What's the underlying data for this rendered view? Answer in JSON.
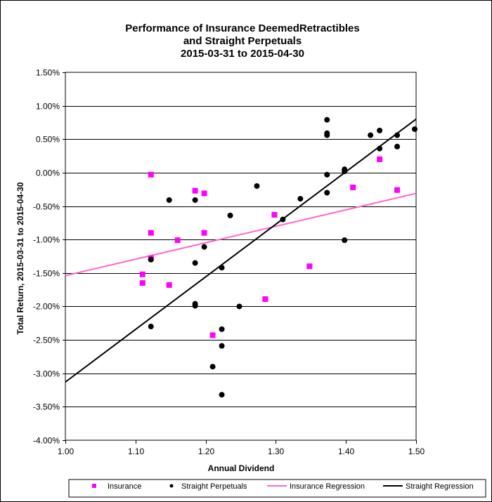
{
  "chart_data": {
    "type": "scatter",
    "title": [
      "Performance of Insurance DeemedRetractibles",
      "and Straight Perpetuals",
      "2015-03-31 to 2015-04-30"
    ],
    "xlabel": "Annual Dividend",
    "ylabel": "Total Return, 2015-03-31  to 2015-04-30",
    "xlim": [
      1.0,
      1.5
    ],
    "ylim": [
      -4.0,
      1.5
    ],
    "x_ticks": [
      1.0,
      1.1,
      1.2,
      1.3,
      1.4,
      1.5
    ],
    "x_tick_labels": [
      "1.00",
      "1.10",
      "1.20",
      "1.30",
      "1.40",
      "1.50"
    ],
    "y_ticks": [
      1.5,
      1.0,
      0.5,
      0.0,
      -0.5,
      -1.0,
      -1.5,
      -2.0,
      -2.5,
      -3.0,
      -3.5,
      -4.0
    ],
    "y_tick_labels": [
      "1.50%",
      "1.00%",
      "0.50%",
      "0.00%",
      "-0.50%",
      "-1.00%",
      "-1.50%",
      "-2.00%",
      "-2.50%",
      "-3.00%",
      "-3.50%",
      "-4.00%"
    ],
    "grid": "horizontal",
    "legend_position": "bottom",
    "series": [
      {
        "name": "Insurance",
        "kind": "scatter",
        "marker": "square",
        "color": "#ff00ff",
        "points": [
          [
            1.11,
            -1.52
          ],
          [
            1.11,
            -1.65
          ],
          [
            1.122,
            -0.03
          ],
          [
            1.122,
            -0.9
          ],
          [
            1.122,
            -1.28
          ],
          [
            1.148,
            -1.68
          ],
          [
            1.16,
            -1.01
          ],
          [
            1.185,
            -0.27
          ],
          [
            1.198,
            -0.31
          ],
          [
            1.198,
            -0.9
          ],
          [
            1.21,
            -2.43
          ],
          [
            1.285,
            -1.89
          ],
          [
            1.298,
            -0.63
          ],
          [
            1.348,
            -1.4
          ],
          [
            1.41,
            -0.22
          ],
          [
            1.448,
            0.2
          ],
          [
            1.473,
            -0.26
          ]
        ]
      },
      {
        "name": "Straight Perpetuals",
        "kind": "scatter",
        "marker": "circle",
        "color": "#000000",
        "points": [
          [
            1.122,
            -1.3
          ],
          [
            1.122,
            -2.3
          ],
          [
            1.148,
            -0.41
          ],
          [
            1.185,
            -0.41
          ],
          [
            1.185,
            -1.35
          ],
          [
            1.185,
            -1.96
          ],
          [
            1.185,
            -1.99
          ],
          [
            1.198,
            -1.11
          ],
          [
            1.21,
            -2.9
          ],
          [
            1.223,
            -1.42
          ],
          [
            1.223,
            -2.34
          ],
          [
            1.223,
            -2.59
          ],
          [
            1.223,
            -3.32
          ],
          [
            1.235,
            -0.64
          ],
          [
            1.248,
            -2.0
          ],
          [
            1.273,
            -0.2
          ],
          [
            1.31,
            -0.7
          ],
          [
            1.335,
            -0.39
          ],
          [
            1.373,
            0.79
          ],
          [
            1.373,
            0.59
          ],
          [
            1.373,
            0.56
          ],
          [
            1.373,
            -0.03
          ],
          [
            1.373,
            -0.3
          ],
          [
            1.398,
            0.05
          ],
          [
            1.398,
            0.02
          ],
          [
            1.398,
            -1.01
          ],
          [
            1.435,
            0.56
          ],
          [
            1.448,
            0.63
          ],
          [
            1.448,
            0.36
          ],
          [
            1.473,
            0.56
          ],
          [
            1.473,
            0.39
          ],
          [
            1.498,
            0.65
          ]
        ]
      },
      {
        "name": "Insurance Regression",
        "kind": "line",
        "color": "#ff66cc",
        "points": [
          [
            1.0,
            -1.54
          ],
          [
            1.5,
            -0.31
          ]
        ]
      },
      {
        "name": "Straight Regression",
        "kind": "line",
        "color": "#000000",
        "points": [
          [
            1.0,
            -3.13
          ],
          [
            1.5,
            0.8
          ]
        ]
      }
    ]
  }
}
